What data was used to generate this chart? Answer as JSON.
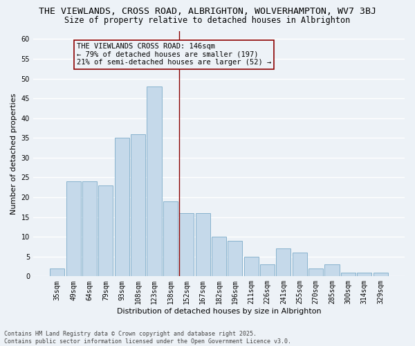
{
  "title_line1": "THE VIEWLANDS, CROSS ROAD, ALBRIGHTON, WOLVERHAMPTON, WV7 3BJ",
  "title_line2": "Size of property relative to detached houses in Albrighton",
  "xlabel": "Distribution of detached houses by size in Albrighton",
  "ylabel": "Number of detached properties",
  "categories": [
    "35sqm",
    "49sqm",
    "64sqm",
    "79sqm",
    "93sqm",
    "108sqm",
    "123sqm",
    "138sqm",
    "152sqm",
    "167sqm",
    "182sqm",
    "196sqm",
    "211sqm",
    "226sqm",
    "241sqm",
    "255sqm",
    "270sqm",
    "285sqm",
    "300sqm",
    "314sqm",
    "329sqm"
  ],
  "values": [
    2,
    24,
    24,
    23,
    35,
    36,
    48,
    19,
    16,
    16,
    10,
    9,
    5,
    3,
    7,
    6,
    2,
    3,
    1,
    1,
    1
  ],
  "bar_color": "#c5d9ea",
  "bar_edge_color": "#7aaac8",
  "vline_x_index": 7.55,
  "vline_color": "#8b0000",
  "annotation_text": "THE VIEWLANDS CROSS ROAD: 146sqm\n← 79% of detached houses are smaller (197)\n21% of semi-detached houses are larger (52) →",
  "annotation_box_color": "#8b0000",
  "ylim": [
    0,
    62
  ],
  "yticks": [
    0,
    5,
    10,
    15,
    20,
    25,
    30,
    35,
    40,
    45,
    50,
    55,
    60
  ],
  "background_color": "#edf2f7",
  "grid_color": "#ffffff",
  "footer_text": "Contains HM Land Registry data © Crown copyright and database right 2025.\nContains public sector information licensed under the Open Government Licence v3.0.",
  "title_fontsize": 9.5,
  "subtitle_fontsize": 8.5,
  "axis_label_fontsize": 8,
  "tick_fontsize": 7,
  "annotation_fontsize": 7.5,
  "ylabel_fontsize": 8
}
